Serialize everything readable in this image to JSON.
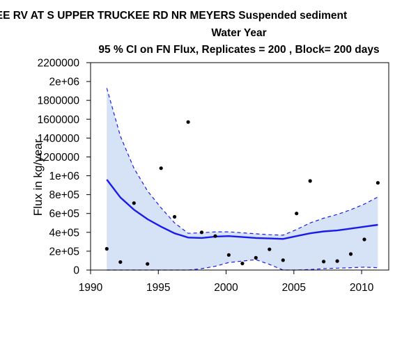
{
  "chart_data": {
    "type": "line",
    "title_lines": [
      "UPPER TRUCKEE RV AT S UPPER TRUCKEE RD NR MEYERS   Suspended sediment",
      "Water Year",
      "95 % CI on FN Flux, Replicates = 200 , Block= 200 days"
    ],
    "xlabel": "",
    "ylabel": "Flux in kg/year",
    "xlim": [
      1990,
      2012
    ],
    "ylim": [
      0,
      2200000
    ],
    "x_ticks": [
      1990,
      1995,
      2000,
      2005,
      2010
    ],
    "x_tick_labels": [
      "1990",
      "1995",
      "2000",
      "2005",
      "2010"
    ],
    "y_ticks": [
      0,
      200000,
      400000,
      600000,
      800000,
      1000000,
      1200000,
      1400000,
      1600000,
      1800000,
      2000000,
      2200000
    ],
    "y_tick_labels": [
      "0",
      "2e+05",
      "4e+05",
      "6e+05",
      "8e+05",
      "1e+06",
      "1200000",
      "1400000",
      "1600000",
      "1800000",
      "2e+06",
      "2200000"
    ],
    "grid": false,
    "colors": {
      "estimate": "#1a1aee",
      "ci_band": "#d6e2f5",
      "points": "#000000"
    },
    "series": [
      {
        "role": "observed",
        "style": "points",
        "x": [
          1991.2,
          1992.2,
          1993.2,
          1994.2,
          1995.2,
          1996.2,
          1997.2,
          1998.2,
          1999.2,
          2000.2,
          2001.2,
          2002.2,
          2003.2,
          2004.2,
          2005.2,
          2006.2,
          2007.2,
          2008.2,
          2009.2,
          2010.2,
          2011.2
        ],
        "y": [
          225000,
          85000,
          710000,
          65000,
          1080000,
          565000,
          1570000,
          400000,
          360000,
          160000,
          70000,
          130000,
          220000,
          105000,
          600000,
          945000,
          90000,
          95000,
          170000,
          325000,
          925000
        ]
      },
      {
        "role": "estimate",
        "style": "solid-line",
        "x": [
          1991.2,
          1992.2,
          1993.2,
          1994.2,
          1995.2,
          1996.2,
          1997.2,
          1998.2,
          1999.2,
          2000.2,
          2001.2,
          2002.2,
          2003.2,
          2004.2,
          2005.2,
          2006.2,
          2007.2,
          2008.2,
          2009.2,
          2010.2,
          2011.2
        ],
        "y": [
          960000,
          770000,
          640000,
          540000,
          460000,
          390000,
          345000,
          340000,
          355000,
          360000,
          350000,
          340000,
          335000,
          330000,
          360000,
          390000,
          410000,
          420000,
          440000,
          460000,
          480000
        ]
      },
      {
        "role": "upper_ci",
        "style": "dashed-line",
        "x": [
          1991.2,
          1992.2,
          1993.2,
          1994.2,
          1995.2,
          1996.2,
          1997.2,
          1998.2,
          1999.2,
          2000.2,
          2001.2,
          2002.2,
          2003.2,
          2004.2,
          2005.2,
          2006.2,
          2007.2,
          2008.2,
          2009.2,
          2010.2,
          2011.2
        ],
        "y": [
          1930000,
          1420000,
          1080000,
          840000,
          660000,
          500000,
          390000,
          395000,
          405000,
          405000,
          395000,
          385000,
          375000,
          370000,
          430000,
          500000,
          550000,
          590000,
          640000,
          700000,
          775000
        ]
      },
      {
        "role": "lower_ci",
        "style": "dashed-line",
        "x": [
          1991.2,
          1992.2,
          1993.2,
          1994.2,
          1995.2,
          1996.2,
          1997.2,
          1998.2,
          1999.2,
          2000.2,
          2001.2,
          2002.2,
          2003.2,
          2004.2,
          2005.2,
          2006.2,
          2007.2,
          2008.2,
          2009.2,
          2010.2,
          2011.2
        ],
        "y": [
          0,
          0,
          0,
          0,
          0,
          0,
          0,
          15000,
          40000,
          80000,
          95000,
          110000,
          60000,
          0,
          0,
          5000,
          15000,
          20000,
          25000,
          30000,
          25000
        ]
      }
    ]
  }
}
